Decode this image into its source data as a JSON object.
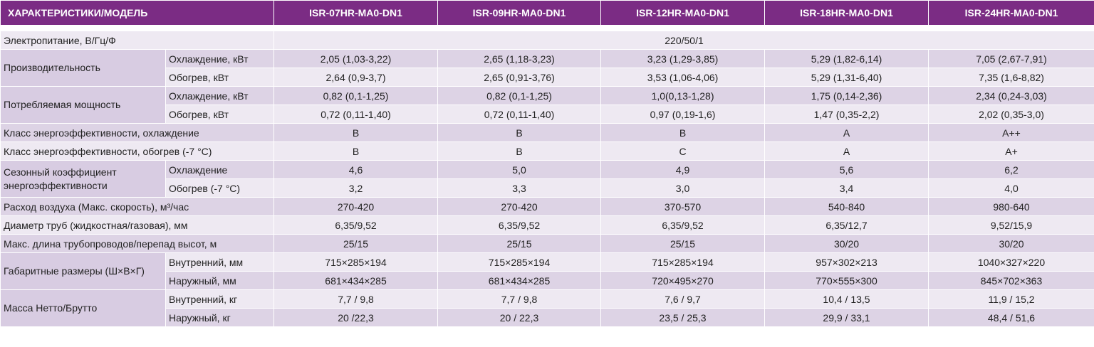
{
  "header": {
    "title": "ХАРАКТЕРИСТИКИ/МОДЕЛЬ",
    "models": [
      "ISR-07HR-MA0-DN1",
      "ISR-09HR-MA0-DN1",
      "ISR-12HR-MA0-DN1",
      "ISR-18HR-MA0-DN1",
      "ISR-24HR-MA0-DN1"
    ]
  },
  "power": {
    "label": "Электропитание, В/Гц/Ф",
    "value": "220/50/1"
  },
  "rows": [
    {
      "label": "Производительность",
      "sub": [
        {
          "label": "Охлаждение, кВт",
          "values": [
            "2,05 (1,03-3,22)",
            "2,65 (1,18-3,23)",
            "3,23 (1,29-3,85)",
            "5,29 (1,82-6,14)",
            "7,05 (2,67-7,91)"
          ]
        },
        {
          "label": "Обогрев, кВт",
          "values": [
            "2,64 (0,9-3,7)",
            "2,65 (0,91-3,76)",
            "3,53 (1,06-4,06)",
            "5,29 (1,31-6,40)",
            "7,35 (1,6-8,82)"
          ]
        }
      ]
    },
    {
      "label": "Потребляемая мощность",
      "sub": [
        {
          "label": "Охлаждение, кВт",
          "values": [
            "0,82 (0,1-1,25)",
            "0,82 (0,1-1,25)",
            "1,0(0,13-1,28)",
            "1,75 (0,14-2,36)",
            "2,34 (0,24-3,03)"
          ]
        },
        {
          "label": "Обогрев, кВт",
          "values": [
            "0,72 (0,11-1,40)",
            "0,72 (0,11-1,40)",
            "0,97 (0,19-1,6)",
            "1,47 (0,35-2,2)",
            "2,02 (0,35-3,0)"
          ]
        }
      ]
    },
    {
      "label": "Класс энергоэффективности, охлаждение",
      "values": [
        "B",
        "B",
        "B",
        "A",
        "A++"
      ]
    },
    {
      "label": "Класс энергоэффективности, обогрев (-7 °C)",
      "values": [
        "B",
        "B",
        "C",
        "A",
        "A+"
      ]
    },
    {
      "label": "Сезонный коэффициент энергоэффективности",
      "sub": [
        {
          "label": "Охлаждение",
          "values": [
            "4,6",
            "5,0",
            "4,9",
            "5,6",
            "6,2"
          ]
        },
        {
          "label": "Обогрев (-7 °C)",
          "values": [
            "3,2",
            "3,3",
            "3,0",
            "3,4",
            "4,0"
          ]
        }
      ]
    },
    {
      "label": "Расход воздуха (Макс. скорость), м³/час",
      "values": [
        "270-420",
        "270-420",
        "370-570",
        "540-840",
        "980-640"
      ]
    },
    {
      "label": "Диаметр труб (жидкостная/газовая), мм",
      "values": [
        "6,35/9,52",
        "6,35/9,52",
        "6,35/9,52",
        "6,35/12,7",
        "9,52/15,9"
      ]
    },
    {
      "label": "Макс. длина трубопроводов/перепад высот, м",
      "values": [
        "25/15",
        "25/15",
        "25/15",
        "30/20",
        "30/20"
      ]
    },
    {
      "label": "Габаритные размеры (Ш×В×Г)",
      "sub": [
        {
          "label": "Внутренний, мм",
          "values": [
            "715×285×194",
            "715×285×194",
            "715×285×194",
            "957×302×213",
            "1040×327×220"
          ]
        },
        {
          "label": "Наружный, мм",
          "values": [
            "681×434×285",
            "681×434×285",
            "720×495×270",
            "770×555×300",
            "845×702×363"
          ]
        }
      ]
    },
    {
      "label": "Масса Нетто/Брутто",
      "sub": [
        {
          "label": "Внутренний, кг",
          "values": [
            "7,7 / 9,8",
            "7,7 / 9,8",
            "7,6 / 9,7",
            "10,4 / 13,5",
            "11,9 / 15,2"
          ]
        },
        {
          "label": "Наружный, кг",
          "values": [
            "20 /22,3",
            "20 / 22,3",
            "23,5 / 25,3",
            "29,9 / 33,1",
            "48,4 / 51,6"
          ]
        }
      ]
    }
  ]
}
